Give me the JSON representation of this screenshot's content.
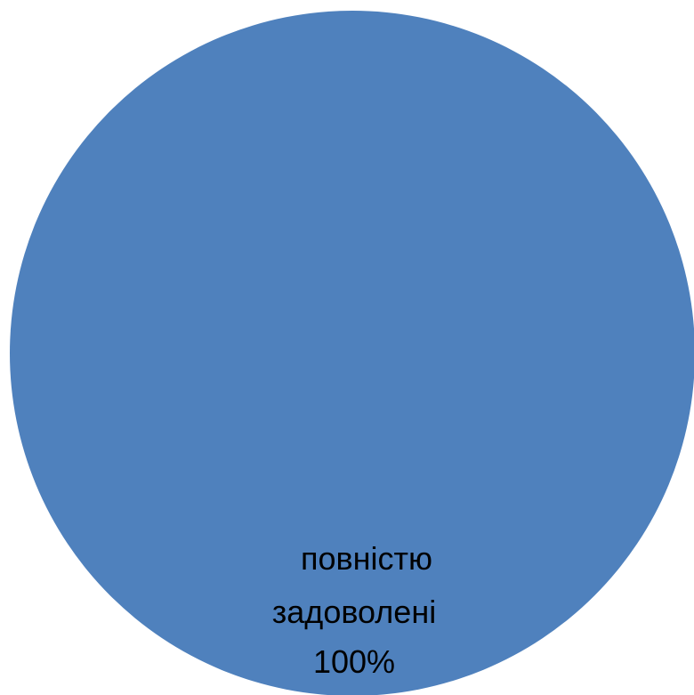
{
  "chart_data": {
    "type": "pie",
    "title": "",
    "slices": [
      {
        "label_lines": [
          "повністю",
          "задоволені",
          "100%"
        ],
        "category": "повністю задоволені",
        "value": 100,
        "percent_label": "100%",
        "color": "#4f81bd"
      }
    ],
    "legend": "none"
  }
}
